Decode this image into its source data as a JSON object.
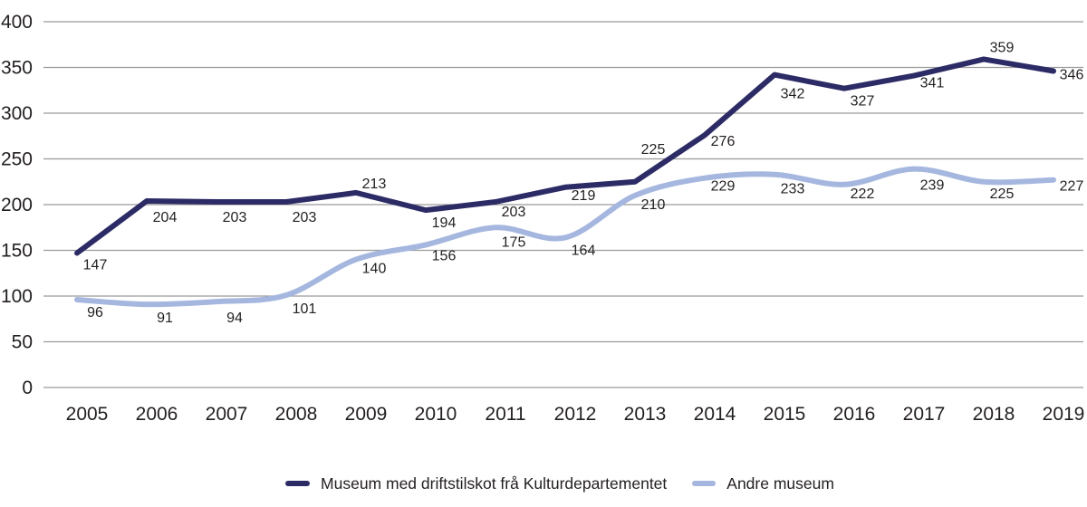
{
  "chart_data": {
    "type": "line",
    "title": "",
    "xlabel": "",
    "ylabel": "",
    "x": [
      "2005",
      "2006",
      "2007",
      "2008",
      "2009",
      "2010",
      "2011",
      "2012",
      "2013",
      "2014",
      "2015",
      "2016",
      "2017",
      "2018",
      "2019"
    ],
    "ylim": [
      0,
      400
    ],
    "yticks": [
      0,
      50,
      100,
      150,
      200,
      250,
      300,
      350,
      400
    ],
    "grid": "horizontal",
    "gridline_color": "#9b9b9b",
    "text_color": "#231f20",
    "legend_position": "bottom-center",
    "series": [
      {
        "id": "museum-kd",
        "name": "Museum med driftstilskot frå Kulturdepartementet",
        "color": "#2d2b66",
        "smooth": false,
        "values": [
          147,
          204,
          203,
          203,
          213,
          194,
          203,
          219,
          225,
          276,
          342,
          327,
          341,
          359,
          346
        ],
        "label_dy": [
          18,
          23,
          22,
          22,
          -5,
          19,
          16,
          14,
          -31,
          12,
          26,
          19,
          13,
          -8,
          9
        ]
      },
      {
        "id": "andre-museum",
        "name": "Andre museum",
        "color": "#a5b7df",
        "smooth": true,
        "values": [
          96,
          91,
          94,
          101,
          140,
          156,
          175,
          164,
          210,
          229,
          233,
          222,
          239,
          225,
          227
        ],
        "label_dy": [
          19,
          20,
          23,
          20,
          15,
          17,
          21,
          19,
          15,
          14,
          21,
          15,
          23,
          18,
          12
        ]
      }
    ]
  }
}
